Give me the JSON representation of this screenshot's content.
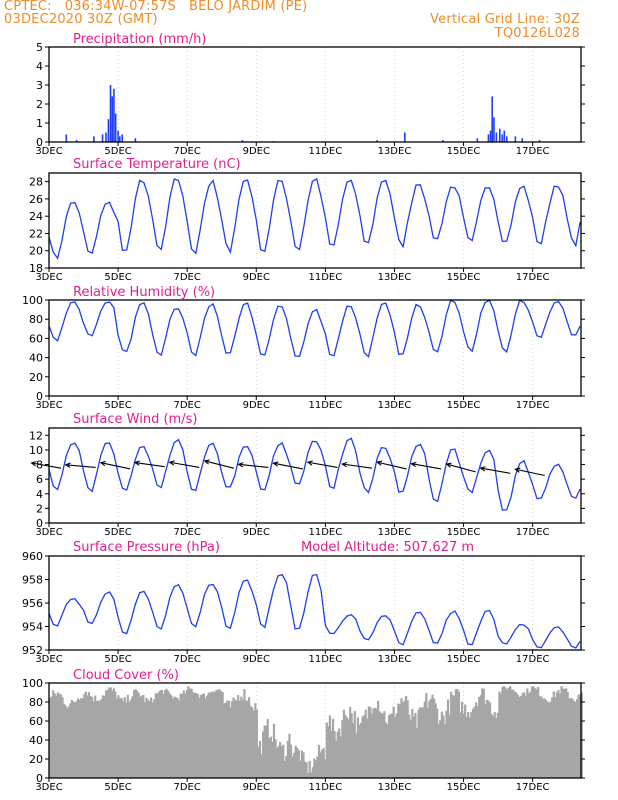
{
  "header": {
    "line1_left": "CPTEC:   036:34W-07:57S   BELO JARDIM (PE)",
    "line2_left": "03DEC2020 30Z (GMT)",
    "line2_right": "Vertical Grid Line: 30Z",
    "line3_right": "TQ0126L028"
  },
  "colors": {
    "header": "#f08c28",
    "title": "#e0208c",
    "series": "#1f3ff0",
    "cloud": "#a6a6a6",
    "wind_arrow": "#000000"
  },
  "x_axis": {
    "ticks": [
      "3DEC",
      "5DEC",
      "7DEC",
      "9DEC",
      "11DEC",
      "13DEC",
      "15DEC",
      "17DEC"
    ],
    "tick_days": [
      3,
      5,
      7,
      9,
      11,
      13,
      15,
      17
    ],
    "range_days": [
      3,
      18.4
    ]
  },
  "chart_data": [
    {
      "type": "bar",
      "title": "Precipitation (mm/h)",
      "ylim": [
        0,
        5
      ],
      "yticks": [
        "0",
        "1",
        "2",
        "3",
        "4",
        "5"
      ],
      "events": [
        {
          "day": 3.5,
          "value": 0.4
        },
        {
          "day": 3.8,
          "value": 0.1
        },
        {
          "day": 4.3,
          "value": 0.3
        },
        {
          "day": 4.55,
          "value": 0.4
        },
        {
          "day": 4.65,
          "value": 0.5
        },
        {
          "day": 4.72,
          "value": 1.2
        },
        {
          "day": 4.78,
          "value": 3.0
        },
        {
          "day": 4.83,
          "value": 2.4
        },
        {
          "day": 4.88,
          "value": 2.8
        },
        {
          "day": 4.93,
          "value": 1.5
        },
        {
          "day": 5.0,
          "value": 0.6
        },
        {
          "day": 5.05,
          "value": 0.3
        },
        {
          "day": 5.12,
          "value": 0.4
        },
        {
          "day": 5.5,
          "value": 0.2
        },
        {
          "day": 8.6,
          "value": 0.1
        },
        {
          "day": 9.5,
          "value": 0.05
        },
        {
          "day": 12.5,
          "value": 0.1
        },
        {
          "day": 13.3,
          "value": 0.5
        },
        {
          "day": 14.4,
          "value": 0.1
        },
        {
          "day": 15.4,
          "value": 0.2
        },
        {
          "day": 15.72,
          "value": 0.4
        },
        {
          "day": 15.78,
          "value": 0.6
        },
        {
          "day": 15.83,
          "value": 2.4
        },
        {
          "day": 15.88,
          "value": 1.3
        },
        {
          "day": 15.95,
          "value": 0.5
        },
        {
          "day": 16.05,
          "value": 0.7
        },
        {
          "day": 16.12,
          "value": 0.4
        },
        {
          "day": 16.18,
          "value": 0.6
        },
        {
          "day": 16.25,
          "value": 0.3
        },
        {
          "day": 16.5,
          "value": 0.3
        },
        {
          "day": 16.7,
          "value": 0.2
        },
        {
          "day": 17.2,
          "value": 0.1
        }
      ]
    },
    {
      "type": "line",
      "title": "Surface Temperature (nC)",
      "ylim": [
        18,
        29
      ],
      "yticks": [
        "18",
        "20",
        "22",
        "24",
        "26",
        "28"
      ],
      "daily_max": [
        25.8,
        25.8,
        28.3,
        28.4,
        28.0,
        28.4,
        28.2,
        28.4,
        28.3,
        28.4,
        28.0,
        27.6,
        27.7,
        27.5,
        27.8
      ],
      "daily_min": [
        18.9,
        19.3,
        19.5,
        19.6,
        19.5,
        19.7,
        19.6,
        19.8,
        20.0,
        20.4,
        20.3,
        21.0,
        20.6,
        20.7,
        20.5
      ]
    },
    {
      "type": "line",
      "title": "Relative Humidity (%)",
      "ylim": [
        0,
        100
      ],
      "yticks": [
        "0",
        "20",
        "40",
        "60",
        "80",
        "100"
      ],
      "daily_max": [
        100,
        100,
        96,
        93,
        96,
        96,
        94,
        90,
        95,
        96,
        96,
        100,
        100,
        100,
        100
      ],
      "daily_min": [
        55,
        60,
        42,
        41,
        40,
        40,
        40,
        38,
        40,
        40,
        40,
        45,
        45,
        45,
        60
      ]
    },
    {
      "type": "line",
      "title": "Surface Wind (m/s)",
      "ylim": [
        0,
        13
      ],
      "yticks": [
        "0",
        "2",
        "4",
        "6",
        "8",
        "10",
        "12"
      ],
      "daily_max": [
        11.2,
        11.0,
        10.5,
        11.3,
        10.8,
        10.5,
        11.0,
        11.3,
        11.8,
        10.5,
        11.0,
        10.2,
        10.0,
        8.5,
        8.0
      ],
      "daily_min": [
        4.5,
        4.0,
        4.2,
        4.3,
        4.2,
        4.5,
        4.0,
        5.0,
        4.5,
        4.0,
        3.8,
        2.5,
        4.0,
        1.2,
        3.0
      ],
      "arrow_speed": [
        7.5,
        7.6,
        7.4,
        7.7,
        7.6,
        7.5,
        7.6,
        7.4,
        7.6,
        7.5,
        7.4,
        7.4,
        7.0,
        6.8,
        6.5
      ],
      "arrow_direction_deg": [
        100,
        95,
        102,
        98,
        100,
        104,
        96,
        101,
        100,
        98,
        103,
        100,
        105,
        100,
        102
      ]
    },
    {
      "type": "line",
      "title": "Surface Pressure (hPa)",
      "subtitle": "Model Altitude: 507.627 m",
      "ylim": [
        952,
        960
      ],
      "yticks": [
        "952",
        "954",
        "956",
        "958",
        "960"
      ],
      "daily_max": [
        956.5,
        957.0,
        957.2,
        957.6,
        957.8,
        958.2,
        958.7,
        958.4,
        955.0,
        955.0,
        955.2,
        955.3,
        955.5,
        954.2,
        954.0
      ],
      "daily_min": [
        954.0,
        954.0,
        953.2,
        953.5,
        953.7,
        953.6,
        953.8,
        953.5,
        953.3,
        952.7,
        952.3,
        952.4,
        952.2,
        952.4,
        952.1
      ]
    },
    {
      "type": "area",
      "title": "Cloud Cover (%)",
      "ylim": [
        0,
        100
      ],
      "yticks": [
        "0",
        "20",
        "40",
        "60",
        "80",
        "100"
      ],
      "daily_mean": [
        83,
        88,
        85,
        88,
        90,
        82,
        40,
        20,
        60,
        72,
        70,
        75,
        80,
        92,
        88
      ],
      "daily_swing": [
        10,
        8,
        8,
        6,
        6,
        12,
        20,
        15,
        20,
        18,
        20,
        18,
        15,
        6,
        8
      ]
    }
  ]
}
